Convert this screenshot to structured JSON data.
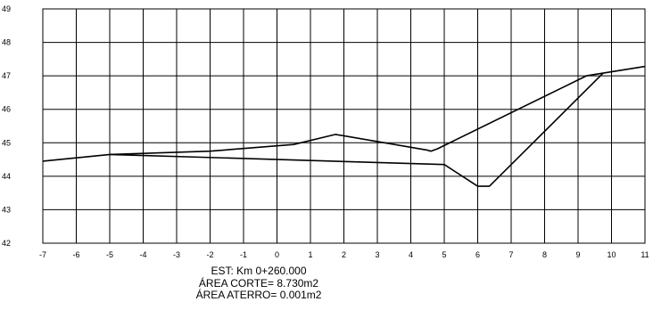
{
  "chart_data": {
    "type": "line",
    "title": "",
    "xlabel": "",
    "ylabel": "",
    "xlim": [
      -7,
      11
    ],
    "ylim": [
      42,
      49
    ],
    "x_ticks": [
      "-7",
      "-6",
      "-5",
      "-4",
      "-3",
      "-2",
      "-1",
      "0",
      "1",
      "2",
      "3",
      "4",
      "5",
      "6",
      "7",
      "8",
      "9",
      "10",
      "11"
    ],
    "y_ticks": [
      "42",
      "43",
      "44",
      "45",
      "46",
      "47",
      "48",
      "49"
    ],
    "grid": true,
    "legend": "none",
    "series": [
      {
        "points": [
          [
            -7,
            44.45
          ],
          [
            -5,
            44.65
          ],
          [
            -2,
            44.75
          ],
          [
            0.5,
            44.95
          ],
          [
            1.75,
            45.25
          ],
          [
            4.5,
            44.78
          ],
          [
            4.6,
            44.75
          ],
          [
            4.8,
            44.82
          ],
          [
            9.25,
            47.0
          ],
          [
            11,
            47.28
          ]
        ],
        "color": "#000000"
      },
      {
        "points": [
          [
            -5,
            44.65
          ],
          [
            5,
            44.35
          ],
          [
            6.0,
            43.7
          ],
          [
            6.35,
            43.7
          ],
          [
            9.75,
            47.08
          ]
        ],
        "color": "#000000"
      }
    ]
  },
  "caption": {
    "station": "EST: Km 0+260.000",
    "cut_area": "ÁREA CORTE= 8.730m2",
    "fill_area": "ÁREA ATERRO= 0.001m2"
  }
}
